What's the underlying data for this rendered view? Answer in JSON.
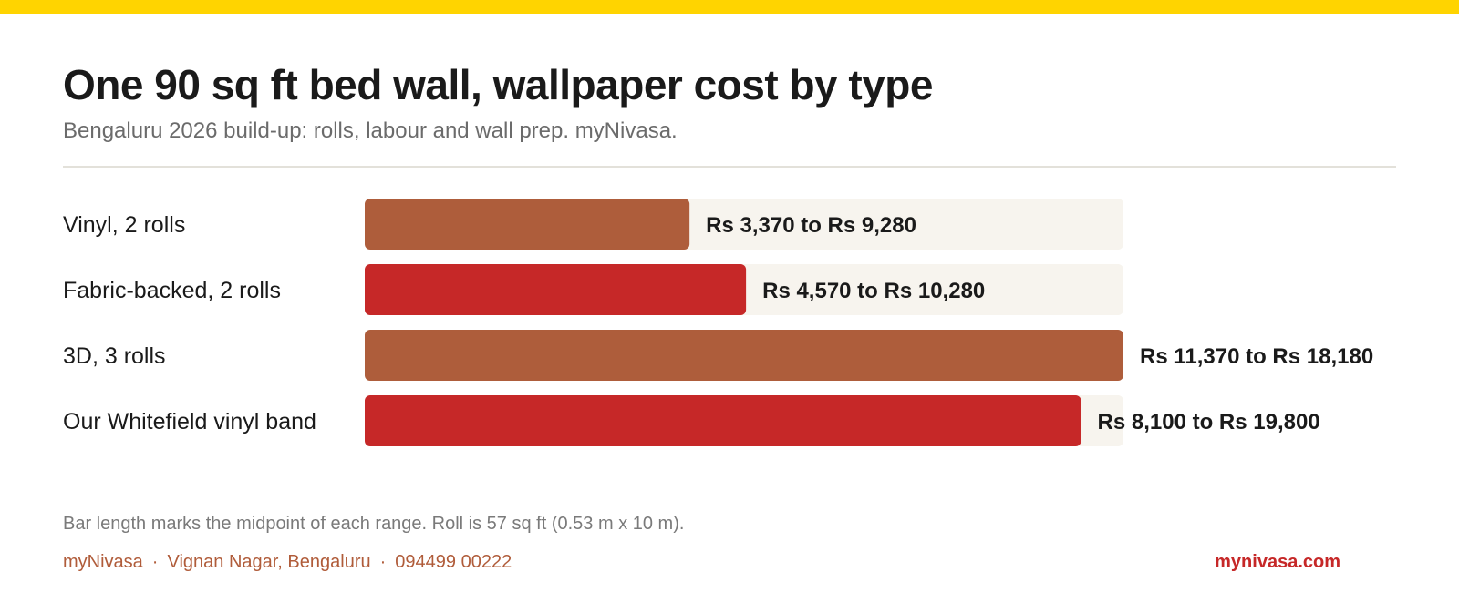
{
  "chart_data": {
    "type": "bar",
    "orientation": "horizontal",
    "title": "One 90 sq ft bed wall, wallpaper cost by type",
    "subtitle": "Bengaluru 2026 build-up: rolls, labour and wall prep. myNivasa.",
    "categories": [
      "Vinyl, 2 rolls",
      "Fabric-backed, 2 rolls",
      "3D, 3 rolls",
      "Our Whitefield vinyl band"
    ],
    "low": [
      3370,
      4570,
      11370,
      8100
    ],
    "high": [
      9280,
      10280,
      18180,
      19800
    ],
    "values": [
      6325,
      7425,
      14775,
      13950
    ],
    "value_labels": [
      "Rs 3,370 to Rs 9,280",
      "Rs 4,570 to Rs 10,280",
      "Rs 11,370 to Rs 18,180",
      "Rs 8,100 to Rs 19,800"
    ],
    "xlim": [
      0,
      14775
    ],
    "grid": false,
    "legend": "none",
    "colors": [
      "#AE5D3B",
      "#C62828",
      "#AE5D3B",
      "#C62828"
    ],
    "track_color": "#F7F4EE"
  },
  "note": "Bar length marks the midpoint of each range. Roll is 57 sq ft (0.53 m x 10 m).",
  "footer": {
    "brand": "myNivasa",
    "location": "Vignan Nagar, Bengaluru",
    "phone": "094499 00222",
    "separator": "·",
    "website": "mynivasa.com"
  },
  "colors": {
    "top_bar": "#FFD400",
    "footer_text": "#B05C3A",
    "website": "#C62828"
  }
}
